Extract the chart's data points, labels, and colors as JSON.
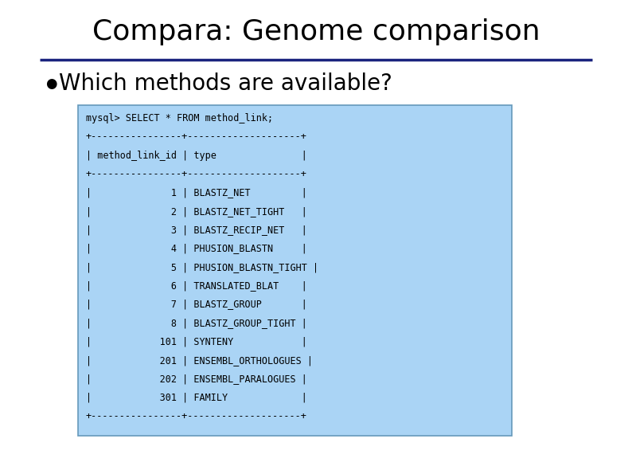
{
  "title": "Compara: Genome comparison",
  "title_fontsize": 26,
  "title_color": "#000000",
  "title_font": "DejaVu Sans",
  "bullet_text": "Which methods are available?",
  "bullet_fontsize": 20,
  "bullet_color": "#000000",
  "line_color": "#1a237e",
  "box_bg_color": "#aad4f5",
  "box_border_color": "#6699bb",
  "code_lines": [
    "mysql> SELECT * FROM method_link;",
    "+----------------+--------------------+",
    "| method_link_id | type               |",
    "+----------------+--------------------+",
    "|              1 | BLASTZ_NET         |",
    "|              2 | BLASTZ_NET_TIGHT   |",
    "|              3 | BLASTZ_RECIP_NET   |",
    "|              4 | PHUSION_BLASTN     |",
    "|              5 | PHUSION_BLASTN_TIGHT |",
    "|              6 | TRANSLATED_BLAT    |",
    "|              7 | BLASTZ_GROUP       |",
    "|              8 | BLASTZ_GROUP_TIGHT |",
    "|            101 | SYNTENY            |",
    "|            201 | ENSEMBL_ORTHOLOGUES |",
    "|            202 | ENSEMBL_PARALOGUES |",
    "|            301 | FAMILY             |",
    "+----------------+--------------------+"
  ],
  "code_fontsize": 8.5,
  "code_color": "#000000",
  "bg_color": "#ffffff"
}
